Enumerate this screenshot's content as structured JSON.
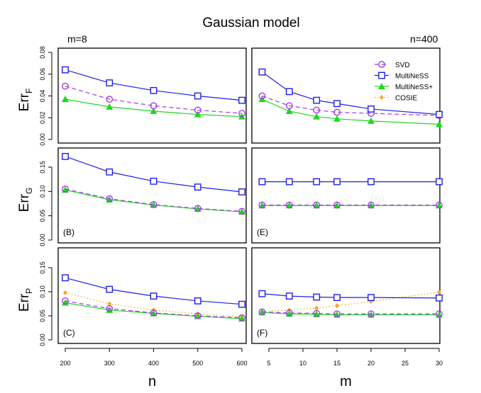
{
  "title": "Gaussian model",
  "left_note": "m=8",
  "right_note": "n=400",
  "colors": {
    "SVD": "#a43be6",
    "MultiNeSS": "#1f1fe6",
    "MultiNeSS+": "#1fd81f",
    "COSIE": "#f5a623"
  },
  "legend": [
    "SVD",
    "MultiNeSS",
    "MultiNeSS+",
    "COSIE"
  ],
  "chart_data": [
    {
      "type": "line",
      "panel": "A",
      "label": "",
      "ylabel": "Err",
      "ylabel_sub": "F",
      "xlabel": "",
      "x": [
        200,
        300,
        400,
        500,
        600
      ],
      "ylim": [
        0,
        0.08
      ],
      "yticks": [
        "0.00",
        "0.02",
        "0.04",
        "0.06",
        "0.08"
      ],
      "xticks": [],
      "series": [
        {
          "name": "SVD",
          "values": [
            0.049,
            0.037,
            0.031,
            0.027,
            0.024
          ]
        },
        {
          "name": "MultiNeSS",
          "values": [
            0.064,
            0.052,
            0.045,
            0.04,
            0.036
          ]
        },
        {
          "name": "MultiNeSS+",
          "values": [
            0.037,
            0.03,
            0.026,
            0.023,
            0.021
          ]
        }
      ]
    },
    {
      "type": "line",
      "panel": "D",
      "label": "",
      "x": [
        4,
        8,
        12,
        15,
        20,
        30
      ],
      "ylim": [
        0,
        0.08
      ],
      "xticks": [],
      "series": [
        {
          "name": "SVD",
          "values": [
            0.04,
            0.031,
            0.027,
            0.025,
            0.024,
            0.022
          ]
        },
        {
          "name": "MultiNeSS",
          "values": [
            0.062,
            0.044,
            0.036,
            0.033,
            0.028,
            0.023
          ]
        },
        {
          "name": "MultiNeSS+",
          "values": [
            0.037,
            0.026,
            0.021,
            0.019,
            0.017,
            0.014
          ]
        }
      ]
    },
    {
      "type": "line",
      "panel": "B",
      "label": "(B)",
      "ylabel": "Err",
      "ylabel_sub": "G",
      "x": [
        200,
        300,
        400,
        500,
        600
      ],
      "ylim": [
        0,
        0.19
      ],
      "yticks": [
        "0.00",
        "0.05",
        "0.10",
        "0.15"
      ],
      "xticks": [],
      "series": [
        {
          "name": "SVD",
          "values": [
            0.105,
            0.085,
            0.073,
            0.065,
            0.059
          ]
        },
        {
          "name": "MultiNeSS",
          "values": [
            0.172,
            0.14,
            0.121,
            0.109,
            0.099
          ]
        },
        {
          "name": "MultiNeSS+",
          "values": [
            0.103,
            0.083,
            0.072,
            0.064,
            0.058
          ]
        }
      ]
    },
    {
      "type": "line",
      "panel": "E",
      "label": "(E)",
      "x": [
        4,
        8,
        12,
        15,
        20,
        30
      ],
      "ylim": [
        0,
        0.19
      ],
      "xticks": [],
      "series": [
        {
          "name": "SVD",
          "values": [
            0.072,
            0.072,
            0.072,
            0.072,
            0.072,
            0.072
          ]
        },
        {
          "name": "MultiNeSS",
          "values": [
            0.12,
            0.12,
            0.12,
            0.12,
            0.12,
            0.12
          ]
        },
        {
          "name": "MultiNeSS+",
          "values": [
            0.071,
            0.071,
            0.071,
            0.071,
            0.071,
            0.071
          ]
        }
      ]
    },
    {
      "type": "line",
      "panel": "C",
      "label": "(C)",
      "ylabel": "Err",
      "ylabel_sub": "P",
      "xlabel": "n",
      "x": [
        200,
        300,
        400,
        500,
        600
      ],
      "ylim": [
        0,
        0.19
      ],
      "yticks": [
        "0.00",
        "0.05",
        "0.10",
        "0.15"
      ],
      "xticks": [
        "200",
        "300",
        "400",
        "500",
        "600"
      ],
      "series": [
        {
          "name": "SVD",
          "values": [
            0.081,
            0.065,
            0.056,
            0.05,
            0.046
          ]
        },
        {
          "name": "MultiNeSS",
          "values": [
            0.129,
            0.105,
            0.091,
            0.081,
            0.074
          ]
        },
        {
          "name": "MultiNeSS+",
          "values": [
            0.077,
            0.062,
            0.055,
            0.049,
            0.044
          ]
        },
        {
          "name": "COSIE",
          "values": [
            0.098,
            0.075,
            0.062,
            0.054,
            0.048
          ]
        }
      ]
    },
    {
      "type": "line",
      "panel": "F",
      "label": "(F)",
      "xlabel": "m",
      "x": [
        4,
        8,
        12,
        15,
        20,
        30
      ],
      "ylim": [
        0,
        0.19
      ],
      "xticks": [
        "5",
        "10",
        "15",
        "20",
        "25",
        "30"
      ],
      "series": [
        {
          "name": "SVD",
          "values": [
            0.058,
            0.056,
            0.055,
            0.054,
            0.054,
            0.054
          ]
        },
        {
          "name": "MultiNeSS",
          "values": [
            0.096,
            0.091,
            0.089,
            0.088,
            0.088,
            0.087
          ]
        },
        {
          "name": "MultiNeSS+",
          "values": [
            0.057,
            0.054,
            0.053,
            0.052,
            0.052,
            0.052
          ]
        },
        {
          "name": "COSIE",
          "values": [
            0.059,
            0.062,
            0.066,
            0.071,
            0.08,
            0.099
          ]
        }
      ]
    }
  ]
}
